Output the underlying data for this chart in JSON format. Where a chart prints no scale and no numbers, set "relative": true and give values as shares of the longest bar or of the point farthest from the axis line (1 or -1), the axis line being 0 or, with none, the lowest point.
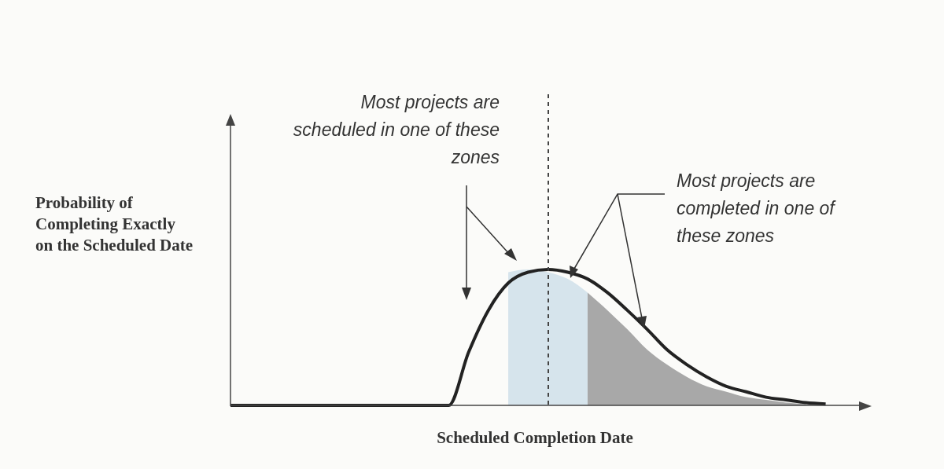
{
  "chart_data": {
    "type": "line",
    "relative": true,
    "xlabel": "Scheduled Completion Date",
    "ylabel": "Probability of Completing Exactly on the Scheduled Date",
    "categories": [
      null,
      null,
      null,
      null,
      null,
      null,
      null,
      null,
      null,
      null,
      null,
      null,
      null,
      null,
      null,
      null,
      null,
      null,
      null,
      null,
      null,
      null,
      null,
      null,
      null,
      null,
      null,
      null,
      null,
      null,
      null,
      null,
      null
    ],
    "series": [
      {
        "type": "area",
        "color": "#d6e4ec",
        "values": [
          null,
          null,
          null,
          null,
          null,
          null,
          null,
          null,
          null,
          null,
          null,
          null,
          null,
          null,
          0.98,
          1.0,
          0.98,
          0.93,
          0.83,
          null,
          null,
          null,
          null,
          null,
          null,
          null,
          null,
          null,
          null,
          null,
          null,
          null,
          null
        ]
      },
      {
        "type": "area",
        "color": "#a8a8a8",
        "values": [
          null,
          null,
          null,
          null,
          null,
          null,
          null,
          null,
          null,
          null,
          null,
          null,
          null,
          null,
          null,
          null,
          null,
          null,
          0.83,
          0.7,
          0.56,
          0.41,
          0.3,
          0.21,
          0.14,
          0.1,
          0.06,
          0.04,
          0.02,
          0.01,
          null,
          null,
          null
        ]
      },
      {
        "color": "#222222",
        "values": [
          0,
          0,
          0,
          0,
          0,
          0,
          0,
          0,
          0,
          0,
          0,
          0,
          0.39,
          0.7,
          0.9,
          0.98,
          1.0,
          0.98,
          0.93,
          0.83,
          0.7,
          0.56,
          0.41,
          0.3,
          0.21,
          0.14,
          0.1,
          0.06,
          0.04,
          0.02,
          0.01,
          null,
          null
        ]
      }
    ],
    "annotations": [
      "Most projects are scheduled in one of these zones",
      "Most projects are completed in one of these zones"
    ]
  }
}
